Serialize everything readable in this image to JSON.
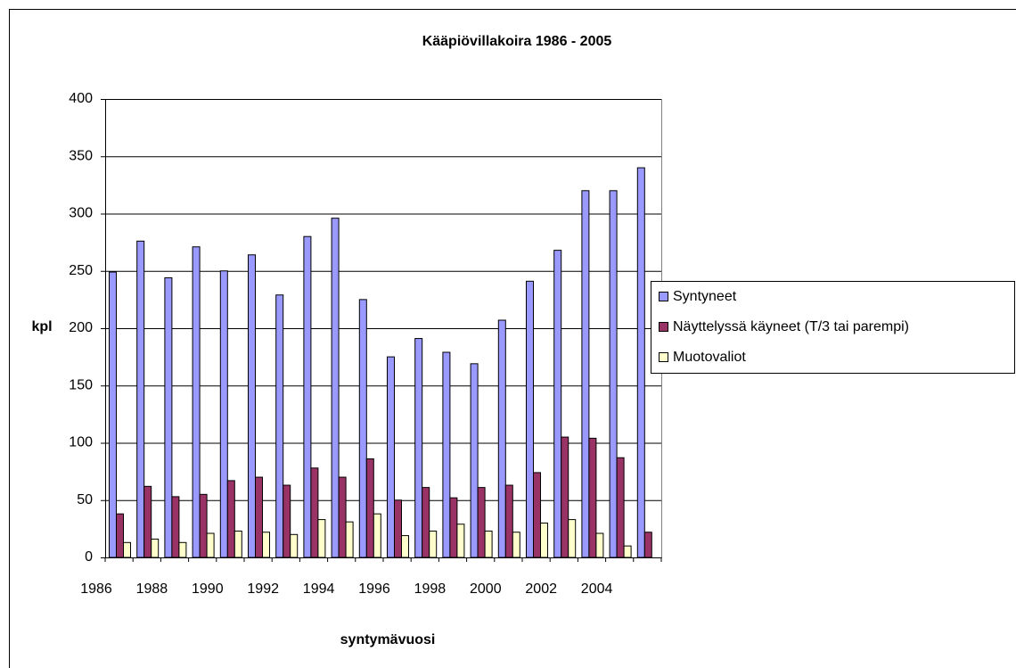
{
  "chart_data": {
    "type": "bar",
    "title": "Kääpiövillakoira 1986 - 2005",
    "x_label": "syntymävuosi",
    "y_label": "kpl",
    "categories": [
      "1986",
      null,
      "1988",
      null,
      "1990",
      null,
      "1992",
      null,
      "1994",
      null,
      "1996",
      null,
      "1998",
      null,
      "2000",
      null,
      "2002",
      null,
      "2004",
      null
    ],
    "series": [
      {
        "name": "Syntyneet",
        "color": "#9999ff",
        "values": [
          249,
          276,
          244,
          271,
          250,
          264,
          229,
          280,
          296,
          225,
          175,
          191,
          179,
          169,
          207,
          241,
          268,
          320,
          320,
          340
        ]
      },
      {
        "name": "Näyttelyssä käyneet (T/3 tai parempi)",
        "color": "#993366",
        "values": [
          38,
          62,
          53,
          55,
          67,
          70,
          63,
          78,
          70,
          86,
          50,
          61,
          52,
          61,
          63,
          74,
          105,
          104,
          87,
          22
        ]
      },
      {
        "name": "Muotovaliot",
        "color": "#ffffcc",
        "values": [
          13,
          16,
          13,
          21,
          23,
          22,
          20,
          33,
          31,
          38,
          19,
          23,
          29,
          23,
          22,
          30,
          33,
          21,
          10,
          0
        ]
      }
    ],
    "ylim": [
      0,
      400
    ],
    "yticks": [
      0,
      50,
      100,
      150,
      200,
      250,
      300,
      350,
      400
    ],
    "grid": true,
    "legend": "right"
  }
}
